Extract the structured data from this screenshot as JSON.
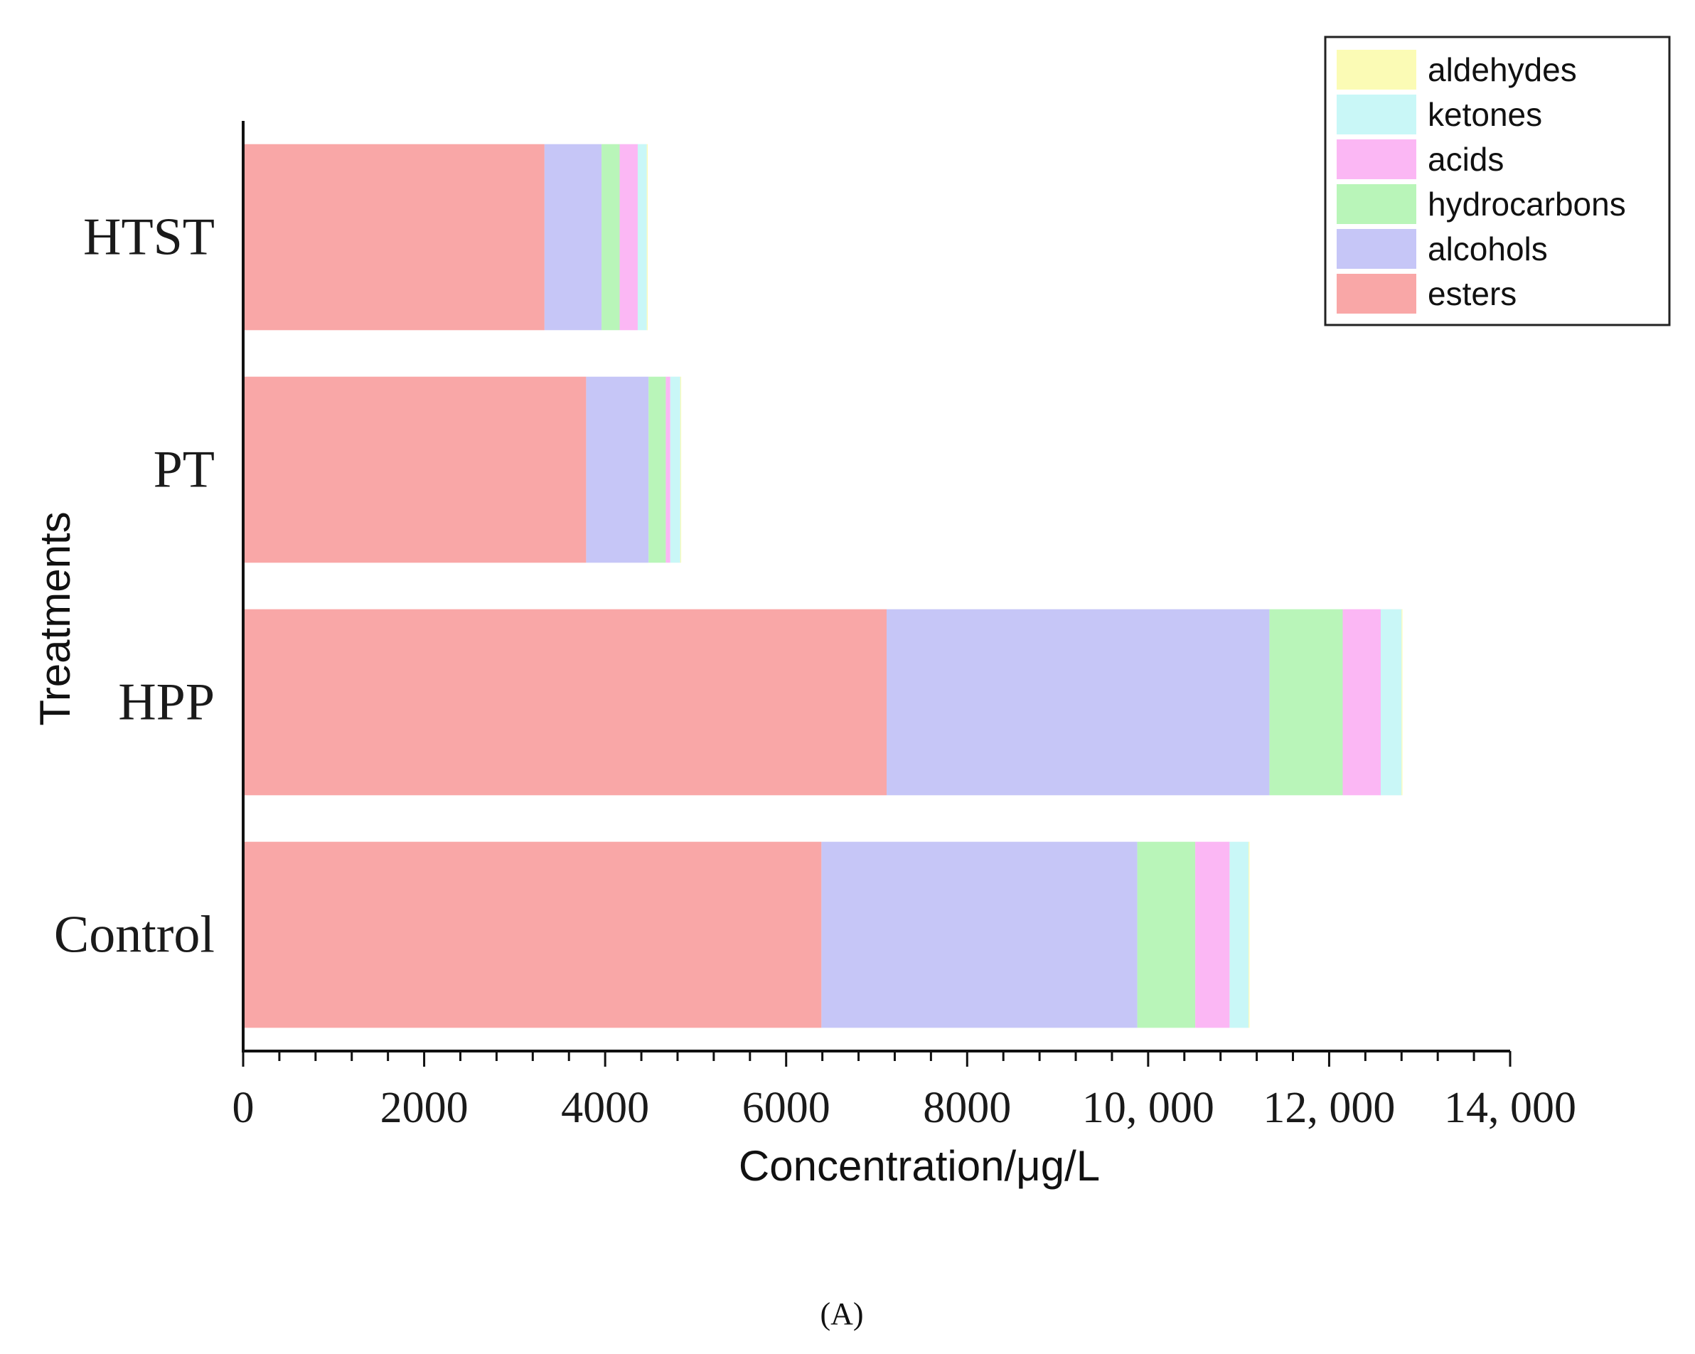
{
  "chart_data": {
    "type": "bar",
    "orientation": "horizontal",
    "stacked": true,
    "title": "",
    "xlabel": "Concentration/μg/L",
    "ylabel": "Treatments",
    "xlim": [
      0,
      14000
    ],
    "xticks": [
      0,
      2000,
      4000,
      6000,
      8000,
      10000,
      12000,
      14000
    ],
    "xtick_labels": [
      "0",
      "2000",
      "4000",
      "6000",
      "8000",
      "10, 000",
      "12, 000",
      "14, 000"
    ],
    "categories": [
      "HTST",
      "PT",
      "HPP",
      "Control"
    ],
    "series": [
      {
        "name": "esters",
        "color": "#f9a7a7",
        "values": [
          3330,
          3790,
          7110,
          6390
        ]
      },
      {
        "name": "alcohols",
        "color": "#c6c6f7",
        "values": [
          630,
          690,
          4230,
          3490
        ]
      },
      {
        "name": "hydrocarbons",
        "color": "#b9f5b9",
        "values": [
          200,
          190,
          810,
          640
        ]
      },
      {
        "name": "acids",
        "color": "#fbb7f4",
        "values": [
          200,
          50,
          420,
          380
        ]
      },
      {
        "name": "ketones",
        "color": "#c9f7f7",
        "values": [
          100,
          110,
          230,
          210
        ]
      },
      {
        "name": "aldehydes",
        "color": "#fbfbb5",
        "values": [
          10,
          10,
          10,
          10
        ]
      }
    ],
    "legend": {
      "position": "top-right",
      "order": [
        "aldehydes",
        "ketones",
        "acids",
        "hydrocarbons",
        "alcohols",
        "esters"
      ]
    },
    "grid": false,
    "panel_label": "(A)"
  }
}
